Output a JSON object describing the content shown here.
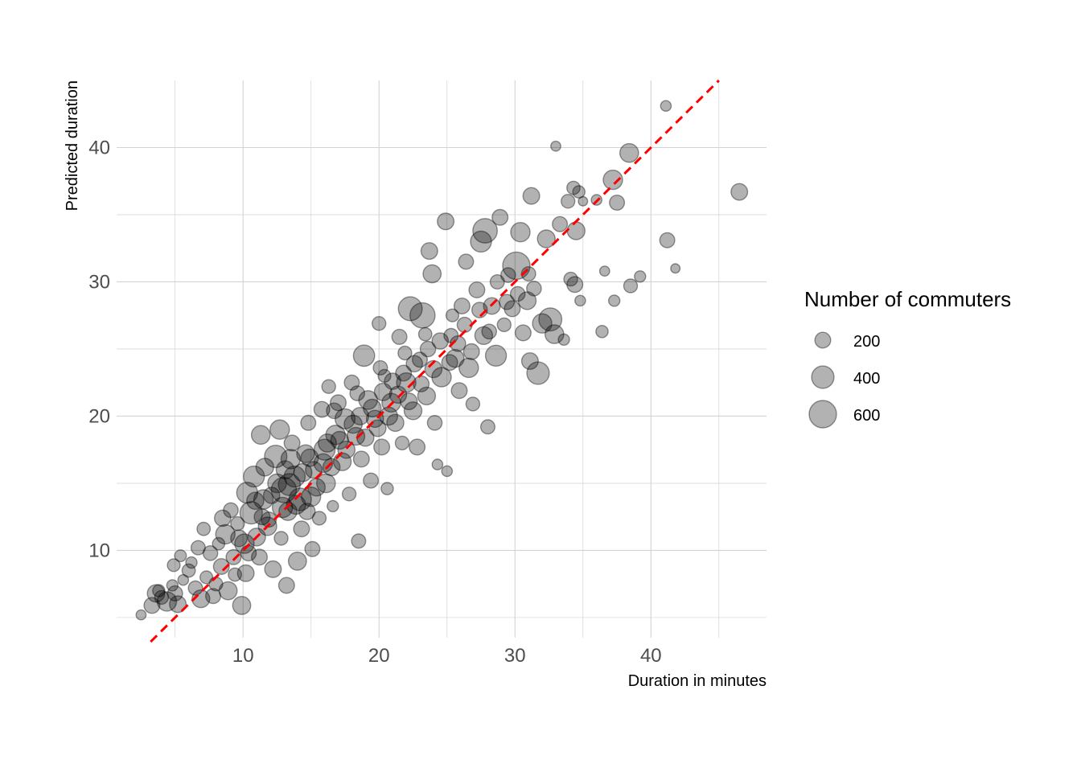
{
  "chart_data": {
    "type": "scatter",
    "xlabel": "Duration in minutes",
    "ylabel": "Predicted duration",
    "xlim": [
      0.7,
      48.5
    ],
    "ylim": [
      3.5,
      45
    ],
    "x_ticks": [
      10,
      20,
      30,
      40
    ],
    "y_ticks": [
      10,
      20,
      30,
      40
    ],
    "grid": true,
    "reference_line": {
      "slope": 1,
      "intercept": 0,
      "color": "#ff0000",
      "style": "dashed"
    },
    "legend": {
      "title": "Number of commuters",
      "position": "right",
      "entries": [
        {
          "label": "200",
          "value": 200
        },
        {
          "label": "400",
          "value": 400
        },
        {
          "label": "600",
          "value": 600
        }
      ]
    },
    "point_style": {
      "fill": "#000000",
      "alpha": 0.3
    },
    "points": [
      [
        2.5,
        5.2,
        80
      ],
      [
        3.3,
        5.9,
        200
      ],
      [
        4.0,
        6.5,
        150
      ],
      [
        3.8,
        7.0,
        120
      ],
      [
        4.4,
        6.2,
        300
      ],
      [
        4.8,
        7.4,
        100
      ],
      [
        5.2,
        6.0,
        220
      ],
      [
        5.0,
        6.8,
        180
      ],
      [
        5.6,
        7.8,
        90
      ],
      [
        6.0,
        8.5,
        140
      ],
      [
        6.5,
        7.2,
        160
      ],
      [
        6.2,
        9.1,
        100
      ],
      [
        6.9,
        6.4,
        250
      ],
      [
        7.3,
        8.0,
        130
      ],
      [
        7.6,
        9.8,
        170
      ],
      [
        8.0,
        7.5,
        150
      ],
      [
        8.2,
        10.5,
        120
      ],
      [
        8.4,
        8.8,
        200
      ],
      [
        8.7,
        11.2,
        300
      ],
      [
        8.9,
        7.0,
        260
      ],
      [
        9.3,
        9.5,
        180
      ],
      [
        9.6,
        12.0,
        150
      ],
      [
        9.9,
        5.9,
        260
      ],
      [
        10.1,
        10.5,
        300
      ],
      [
        10.3,
        14.3,
        350
      ],
      [
        10.2,
        8.3,
        220
      ],
      [
        10.6,
        12.8,
        400
      ],
      [
        10.8,
        15.5,
        350
      ],
      [
        11.0,
        11.0,
        250
      ],
      [
        11.3,
        18.6,
        280
      ],
      [
        11.2,
        9.5,
        200
      ],
      [
        11.5,
        13.8,
        300
      ],
      [
        11.6,
        16.2,
        250
      ],
      [
        11.9,
        12.3,
        180
      ],
      [
        12.2,
        8.6,
        220
      ],
      [
        12.5,
        15.0,
        280
      ],
      [
        12.4,
        17.0,
        400
      ],
      [
        12.7,
        19.0,
        300
      ],
      [
        12.8,
        10.9,
        150
      ],
      [
        13.0,
        14.5,
        500
      ],
      [
        13.2,
        7.4,
        200
      ],
      [
        13.3,
        12.9,
        260
      ],
      [
        13.5,
        16.8,
        300
      ],
      [
        13.6,
        18.0,
        200
      ],
      [
        13.8,
        15.5,
        350
      ],
      [
        14.0,
        9.2,
        260
      ],
      [
        14.2,
        13.8,
        400
      ],
      [
        14.3,
        11.6,
        200
      ],
      [
        14.6,
        17.2,
        250
      ],
      [
        14.8,
        19.5,
        180
      ],
      [
        15.0,
        14.0,
        300
      ],
      [
        15.1,
        10.1,
        180
      ],
      [
        15.2,
        16.0,
        220
      ],
      [
        15.6,
        12.4,
        150
      ],
      [
        15.8,
        20.5,
        200
      ],
      [
        16.0,
        17.5,
        350
      ],
      [
        16.1,
        15.0,
        280
      ],
      [
        16.3,
        22.2,
        150
      ],
      [
        16.6,
        13.3,
        100
      ],
      [
        16.8,
        18.6,
        300
      ],
      [
        17.0,
        21.0,
        200
      ],
      [
        17.3,
        16.6,
        250
      ],
      [
        17.5,
        19.8,
        320
      ],
      [
        17.8,
        14.2,
        150
      ],
      [
        18.0,
        22.5,
        180
      ],
      [
        18.3,
        18.5,
        250
      ],
      [
        18.5,
        10.7,
        160
      ],
      [
        18.7,
        16.8,
        200
      ],
      [
        18.9,
        24.5,
        360
      ],
      [
        19.2,
        21.2,
        280
      ],
      [
        19.4,
        15.2,
        180
      ],
      [
        19.7,
        19.8,
        230
      ],
      [
        20.0,
        26.9,
        150
      ],
      [
        20.2,
        17.7,
        200
      ],
      [
        20.4,
        23.0,
        130
      ],
      [
        20.6,
        14.6,
        120
      ],
      [
        20.9,
        21.0,
        280
      ],
      [
        21.2,
        19.5,
        230
      ],
      [
        21.5,
        25.9,
        180
      ],
      [
        21.7,
        18.0,
        150
      ],
      [
        22.0,
        22.5,
        300
      ],
      [
        22.3,
        28.0,
        450
      ],
      [
        22.5,
        20.4,
        250
      ],
      [
        22.8,
        17.7,
        200
      ],
      [
        23.0,
        24.2,
        180
      ],
      [
        23.2,
        27.5,
        500
      ],
      [
        23.5,
        21.5,
        250
      ],
      [
        23.7,
        32.3,
        220
      ],
      [
        23.9,
        30.6,
        260
      ],
      [
        24.1,
        19.5,
        170
      ],
      [
        24.3,
        16.4,
        90
      ],
      [
        24.6,
        22.9,
        300
      ],
      [
        24.9,
        34.5,
        220
      ],
      [
        25.0,
        15.9,
        90
      ],
      [
        25.3,
        26.0,
        160
      ],
      [
        25.6,
        24.3,
        250
      ],
      [
        25.9,
        21.9,
        200
      ],
      [
        26.1,
        28.2,
        200
      ],
      [
        26.4,
        31.5,
        180
      ],
      [
        26.6,
        23.6,
        300
      ],
      [
        26.9,
        20.9,
        150
      ],
      [
        27.2,
        29.4,
        200
      ],
      [
        27.5,
        33.0,
        350
      ],
      [
        27.7,
        26.0,
        250
      ],
      [
        27.8,
        33.8,
        480
      ],
      [
        28.0,
        19.2,
        160
      ],
      [
        28.3,
        28.2,
        220
      ],
      [
        28.6,
        24.5,
        350
      ],
      [
        28.9,
        34.8,
        200
      ],
      [
        29.2,
        26.8,
        150
      ],
      [
        29.5,
        30.5,
        170
      ],
      [
        29.8,
        28.0,
        200
      ],
      [
        30.1,
        31.2,
        600
      ],
      [
        30.4,
        33.7,
        300
      ],
      [
        30.6,
        26.2,
        200
      ],
      [
        30.9,
        28.6,
        250
      ],
      [
        31.1,
        24.1,
        220
      ],
      [
        31.2,
        36.4,
        220
      ],
      [
        31.4,
        29.5,
        170
      ],
      [
        31.7,
        23.2,
        400
      ],
      [
        32.0,
        26.9,
        300
      ],
      [
        32.3,
        33.2,
        250
      ],
      [
        32.6,
        27.2,
        420
      ],
      [
        32.9,
        26.1,
        280
      ],
      [
        33.0,
        40.1,
        80
      ],
      [
        33.3,
        34.3,
        180
      ],
      [
        33.6,
        25.7,
        100
      ],
      [
        33.9,
        36.0,
        150
      ],
      [
        34.1,
        30.2,
        150
      ],
      [
        34.3,
        37.0,
        140
      ],
      [
        34.5,
        33.8,
        250
      ],
      [
        34.7,
        36.7,
        120
      ],
      [
        35.0,
        36.0,
        70
      ],
      [
        34.8,
        28.6,
        90
      ],
      [
        34.4,
        29.8,
        200
      ],
      [
        36.0,
        36.1,
        90
      ],
      [
        36.4,
        26.3,
        120
      ],
      [
        36.6,
        30.8,
        80
      ],
      [
        37.2,
        37.6,
        300
      ],
      [
        37.5,
        35.9,
        180
      ],
      [
        37.3,
        28.6,
        100
      ],
      [
        38.4,
        39.6,
        280
      ],
      [
        38.5,
        29.7,
        150
      ],
      [
        39.2,
        30.4,
        100
      ],
      [
        41.1,
        43.1,
        90
      ],
      [
        41.2,
        33.1,
        180
      ],
      [
        41.8,
        31.0,
        70
      ],
      [
        46.5,
        36.7,
        220
      ],
      [
        3.6,
        6.8,
        240
      ],
      [
        4.9,
        8.9,
        130
      ],
      [
        5.4,
        9.6,
        110
      ],
      [
        6.7,
        10.2,
        160
      ],
      [
        7.1,
        11.6,
        140
      ],
      [
        7.8,
        6.6,
        180
      ],
      [
        8.5,
        12.4,
        210
      ],
      [
        9.1,
        13.0,
        170
      ],
      [
        9.4,
        8.2,
        140
      ],
      [
        10.4,
        9.8,
        190
      ],
      [
        10.9,
        13.7,
        230
      ],
      [
        11.8,
        11.8,
        270
      ],
      [
        12.1,
        14.1,
        210
      ],
      [
        12.9,
        13.2,
        330
      ],
      [
        13.4,
        14.9,
        380
      ],
      [
        13.9,
        13.4,
        290
      ],
      [
        14.4,
        15.8,
        260
      ],
      [
        14.7,
        12.9,
        210
      ],
      [
        15.4,
        14.7,
        240
      ],
      [
        15.9,
        16.5,
        280
      ],
      [
        16.2,
        18.0,
        260
      ],
      [
        16.5,
        16.2,
        230
      ],
      [
        17.1,
        18.2,
        250
      ],
      [
        17.6,
        17.5,
        230
      ],
      [
        18.1,
        19.4,
        260
      ],
      [
        18.6,
        20.0,
        240
      ],
      [
        19.0,
        18.4,
        230
      ],
      [
        19.5,
        20.6,
        250
      ],
      [
        19.9,
        19.1,
        220
      ],
      [
        20.3,
        21.8,
        240
      ],
      [
        20.7,
        20.0,
        260
      ],
      [
        21.0,
        22.6,
        210
      ],
      [
        21.4,
        21.6,
        230
      ],
      [
        21.8,
        23.2,
        200
      ],
      [
        22.2,
        21.1,
        220
      ],
      [
        22.6,
        23.9,
        210
      ],
      [
        23.1,
        22.4,
        200
      ],
      [
        23.6,
        25.0,
        190
      ],
      [
        24.0,
        23.5,
        230
      ],
      [
        24.5,
        25.6,
        210
      ],
      [
        25.2,
        24.0,
        200
      ],
      [
        25.8,
        25.4,
        190
      ],
      [
        26.3,
        26.8,
        180
      ],
      [
        26.8,
        24.8,
        200
      ],
      [
        27.4,
        27.9,
        190
      ],
      [
        28.1,
        26.3,
        170
      ],
      [
        28.7,
        30.0,
        160
      ],
      [
        29.4,
        28.5,
        180
      ],
      [
        30.2,
        29.1,
        170
      ],
      [
        31.0,
        30.6,
        160
      ],
      [
        9.7,
        10.9,
        220
      ],
      [
        11.4,
        12.5,
        200
      ],
      [
        13.1,
        16.0,
        260
      ],
      [
        14.9,
        16.9,
        240
      ],
      [
        16.7,
        20.4,
        190
      ],
      [
        18.4,
        21.7,
        170
      ],
      [
        20.1,
        23.6,
        160
      ],
      [
        21.9,
        24.7,
        150
      ],
      [
        23.4,
        26.1,
        140
      ],
      [
        25.4,
        27.5,
        130
      ]
    ]
  }
}
